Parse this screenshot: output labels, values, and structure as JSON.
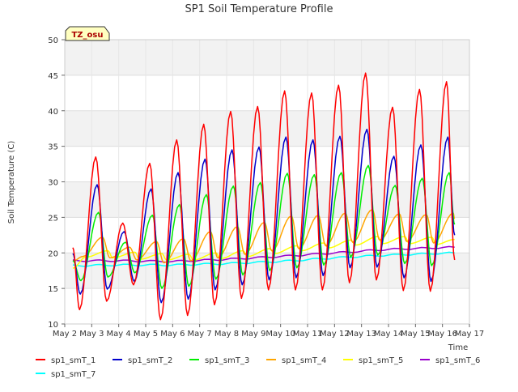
{
  "chart_data": {
    "type": "line",
    "title": "SP1 Soil Temperature Profile",
    "xlabel": "Time",
    "ylabel": "Soil Temperature (C)",
    "annotation": "TZ_osu",
    "xlim": [
      2,
      17
    ],
    "ylim": [
      10,
      50
    ],
    "x_ticks": [
      2,
      3,
      4,
      5,
      6,
      7,
      8,
      9,
      10,
      11,
      12,
      13,
      14,
      15,
      16,
      17
    ],
    "x_tick_labels": [
      "May 2",
      "May 3",
      "May 4",
      "May 5",
      "May 6",
      "May 7",
      "May 8",
      "May 9",
      "May 10",
      "May 11",
      "May 12",
      "May 13",
      "May 14",
      "May 15",
      "May 16",
      "May 17"
    ],
    "y_ticks": [
      10,
      15,
      20,
      25,
      30,
      35,
      40,
      45,
      50
    ],
    "y_tick_labels": [
      "10",
      "15",
      "20",
      "25",
      "30",
      "35",
      "40",
      "45",
      "50"
    ],
    "grid": true,
    "legend_position": "bottom",
    "days": [
      2,
      3,
      4,
      5,
      6,
      7,
      8,
      9,
      10,
      11,
      12,
      13,
      14,
      15,
      16
    ],
    "series": [
      {
        "name": "sp1_smT_1",
        "color": "#ff0000",
        "kind": "diurnal",
        "peak_phase": 0.15,
        "rise": 0.35,
        "start": 2.3,
        "end": 16.45,
        "max": [
          33.5,
          24.2,
          32.6,
          35.9,
          38.1,
          39.9,
          40.6,
          42.8,
          42.5,
          43.6,
          45.3,
          40.5,
          43.0,
          44.1
        ],
        "min": [
          12.0,
          13.2,
          15.5,
          10.6,
          11.2,
          12.7,
          13.6,
          14.8,
          14.8,
          14.8,
          15.8,
          16.2,
          14.7,
          14.6
        ],
        "end_value": 19.0
      },
      {
        "name": "sp1_smT_2",
        "color": "#0000cc",
        "kind": "diurnal",
        "peak_phase": 0.2,
        "rise": 0.4,
        "start": 2.3,
        "end": 16.45,
        "max": [
          29.6,
          23.0,
          29.0,
          31.3,
          33.2,
          34.5,
          34.9,
          36.3,
          35.9,
          36.4,
          37.4,
          33.6,
          35.2,
          36.3
        ],
        "min": [
          14.2,
          14.9,
          16.0,
          13.0,
          13.5,
          14.8,
          15.5,
          16.2,
          16.5,
          16.8,
          17.9,
          18.0,
          16.5,
          16.0
        ],
        "end_value": 22.5
      },
      {
        "name": "sp1_smT_3",
        "color": "#00ee00",
        "kind": "diurnal",
        "peak_phase": 0.25,
        "rise": 0.42,
        "start": 2.3,
        "end": 16.45,
        "max": [
          25.7,
          21.5,
          25.3,
          26.8,
          28.2,
          29.4,
          29.9,
          31.2,
          31.0,
          31.3,
          32.3,
          29.5,
          30.5,
          31.3
        ],
        "min": [
          16.1,
          16.6,
          17.2,
          15.0,
          15.3,
          16.3,
          16.9,
          17.5,
          17.9,
          18.3,
          19.4,
          19.7,
          18.5,
          18.2
        ],
        "end_value": 24.0
      },
      {
        "name": "sp1_smT_4",
        "color": "#ffa500",
        "kind": "diurnal",
        "peak_phase": 0.4,
        "rise": 0.5,
        "start": 2.3,
        "end": 16.45,
        "max": [
          22.2,
          20.8,
          21.6,
          22.0,
          23.0,
          23.7,
          24.3,
          25.2,
          25.3,
          25.6,
          26.1,
          25.5,
          25.4,
          25.6
        ],
        "min": [
          19.5,
          19.3,
          19.0,
          18.6,
          18.9,
          19.3,
          19.8,
          20.3,
          20.6,
          21.0,
          21.5,
          21.8,
          21.6,
          21.4
        ],
        "end_value": 24.8
      },
      {
        "name": "sp1_smT_5",
        "color": "#ffff00",
        "kind": "diurnal",
        "peak_phase": 0.6,
        "rise": 0.5,
        "start": 2.3,
        "end": 16.45,
        "max": [
          20.3,
          20.1,
          19.9,
          19.8,
          20.0,
          20.3,
          20.6,
          21.0,
          21.4,
          21.8,
          22.3,
          22.3,
          22.2,
          22.0
        ],
        "min": [
          19.4,
          19.3,
          19.1,
          19.0,
          19.0,
          19.2,
          19.5,
          19.9,
          20.3,
          20.7,
          21.1,
          21.3,
          21.3,
          21.2
        ],
        "end_value": 21.9
      },
      {
        "name": "sp1_smT_6",
        "color": "#9900cc",
        "kind": "trend",
        "start": 2.3,
        "end": 16.45,
        "points": [
          [
            2.3,
            18.9
          ],
          [
            4.0,
            18.9
          ],
          [
            6.0,
            18.8
          ],
          [
            8.0,
            19.1
          ],
          [
            10.0,
            19.5
          ],
          [
            12.0,
            20.0
          ],
          [
            14.0,
            20.5
          ],
          [
            16.45,
            20.8
          ]
        ]
      },
      {
        "name": "sp1_smT_7",
        "color": "#00ffff",
        "kind": "trend",
        "start": 2.3,
        "end": 16.45,
        "points": [
          [
            2.3,
            18.2
          ],
          [
            4.0,
            18.3
          ],
          [
            6.0,
            18.3
          ],
          [
            8.0,
            18.5
          ],
          [
            10.0,
            18.8
          ],
          [
            12.0,
            19.3
          ],
          [
            14.0,
            19.7
          ],
          [
            16.45,
            20.0
          ]
        ]
      }
    ]
  }
}
